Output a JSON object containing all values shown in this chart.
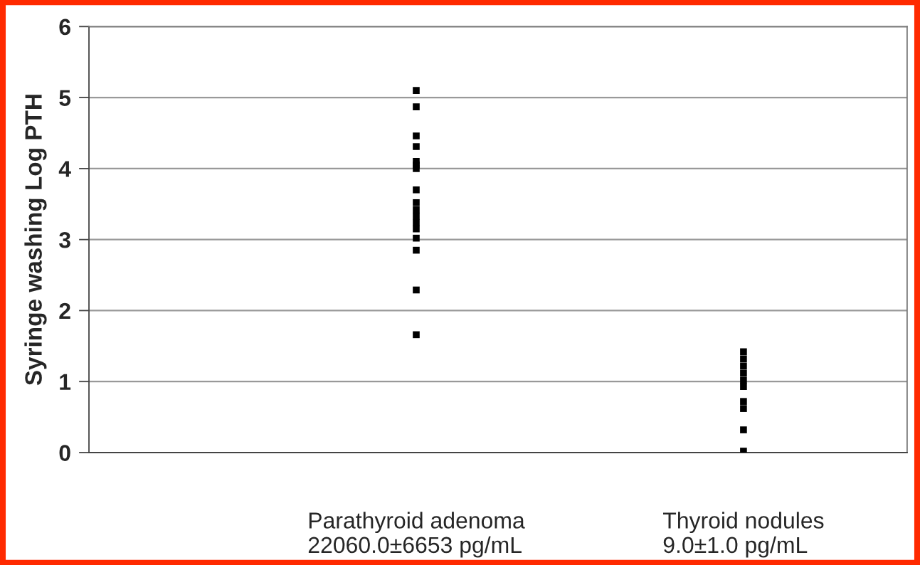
{
  "chart_data": {
    "type": "scatter",
    "ylabel": "Syringe washing Log PTH",
    "categories": [
      "Parathyroid adenoma\n22060.0±6653 pg/mL",
      "Thyroid nodules\n9.0±1.0 pg/mL"
    ],
    "series": [
      {
        "color": "#000000",
        "x": [
          "Parathyroid adenoma\n22060.0±6653 pg/mL",
          "Parathyroid adenoma\n22060.0±6653 pg/mL",
          "Parathyroid adenoma\n22060.0±6653 pg/mL",
          "Parathyroid adenoma\n22060.0±6653 pg/mL",
          "Parathyroid adenoma\n22060.0±6653 pg/mL",
          "Parathyroid adenoma\n22060.0±6653 pg/mL",
          "Parathyroid adenoma\n22060.0±6653 pg/mL",
          "Parathyroid adenoma\n22060.0±6653 pg/mL",
          "Parathyroid adenoma\n22060.0±6653 pg/mL",
          "Parathyroid adenoma\n22060.0±6653 pg/mL",
          "Parathyroid adenoma\n22060.0±6653 pg/mL",
          "Parathyroid adenoma\n22060.0±6653 pg/mL",
          "Parathyroid adenoma\n22060.0±6653 pg/mL",
          "Parathyroid adenoma\n22060.0±6653 pg/mL",
          "Parathyroid adenoma\n22060.0±6653 pg/mL",
          "Parathyroid adenoma\n22060.0±6653 pg/mL",
          "Parathyroid adenoma\n22060.0±6653 pg/mL",
          "Thyroid nodules\n9.0±1.0 pg/mL",
          "Thyroid nodules\n9.0±1.0 pg/mL",
          "Thyroid nodules\n9.0±1.0 pg/mL",
          "Thyroid nodules\n9.0±1.0 pg/mL",
          "Thyroid nodules\n9.0±1.0 pg/mL",
          "Thyroid nodules\n9.0±1.0 pg/mL",
          "Thyroid nodules\n9.0±1.0 pg/mL",
          "Thyroid nodules\n9.0±1.0 pg/mL",
          "Thyroid nodules\n9.0±1.0 pg/mL",
          "Thyroid nodules\n9.0±1.0 pg/mL"
        ],
        "values": [
          5.1,
          4.87,
          4.46,
          4.31,
          4.1,
          4.0,
          3.7,
          3.52,
          3.42,
          3.33,
          3.24,
          3.15,
          3.02,
          2.85,
          2.29,
          1.66,
          4.05,
          1.42,
          1.32,
          1.22,
          1.12,
          1.02,
          0.93,
          0.72,
          0.62,
          0.32,
          0.02
        ]
      }
    ],
    "ylim": [
      0,
      6
    ],
    "yticks": [
      0,
      1,
      2,
      3,
      4,
      5,
      6
    ],
    "grid": "y",
    "marker": "square"
  }
}
